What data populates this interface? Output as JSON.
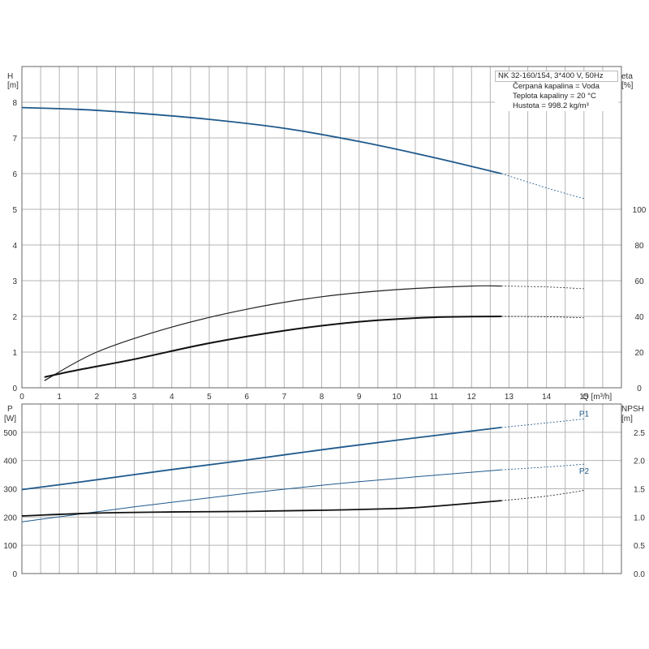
{
  "info": {
    "title": "NK 32-160/154, 3*400 V, 50Hz",
    "lines": [
      "Čerpaná kapalina = Voda",
      "Teplota kapaliny = 20 °C",
      "Hustota = 998.2 kg/m³"
    ]
  },
  "axes": {
    "h_label": "H",
    "h_unit": "[m]",
    "eta_label": "eta",
    "eta_unit": "[%]",
    "q_label": "Q [m³/h]",
    "p_label": "P",
    "p_unit": "[W]",
    "npsh_label": "NPSH",
    "npsh_unit": "[m]"
  },
  "chart_data": [
    {
      "type": "line",
      "x_ticks": [
        0,
        1,
        2,
        3,
        4,
        5,
        6,
        7,
        8,
        9,
        10,
        11,
        12,
        13,
        14,
        15
      ],
      "xlim": [
        0,
        16
      ],
      "y_left_ticks": [
        0,
        1,
        2,
        3,
        4,
        5,
        6,
        7,
        8
      ],
      "ylim_left": [
        0,
        9
      ],
      "y_right_ticks": [
        0,
        20,
        40,
        60,
        80,
        100
      ],
      "ylim_right": [
        0,
        180
      ],
      "series": [
        {
          "axis": "left",
          "color": "#1f5a8c",
          "width": 1.8,
          "solid": [
            [
              0,
              7.85
            ],
            [
              1.5,
              7.8
            ],
            [
              3,
              7.7
            ],
            [
              5,
              7.52
            ],
            [
              7,
              7.27
            ],
            [
              9,
              6.9
            ],
            [
              11,
              6.45
            ],
            [
              12.8,
              6.0
            ]
          ],
          "dashed": [
            [
              12.8,
              6.0
            ],
            [
              14,
              5.6
            ],
            [
              15,
              5.3
            ]
          ]
        },
        {
          "axis": "right",
          "color": "#222222",
          "width": 1.2,
          "solid": [
            [
              0.6,
              4
            ],
            [
              2,
              20
            ],
            [
              4,
              34
            ],
            [
              6,
              44
            ],
            [
              8,
              51
            ],
            [
              10,
              55
            ],
            [
              12,
              57
            ],
            [
              12.8,
              57
            ]
          ],
          "dashed": [
            [
              12.8,
              57
            ],
            [
              14,
              56.5
            ],
            [
              15,
              55.5
            ]
          ]
        },
        {
          "axis": "right",
          "color": "#111111",
          "width": 2.0,
          "solid": [
            [
              0.6,
              6
            ],
            [
              1.5,
              10
            ],
            [
              3,
              16
            ],
            [
              5,
              25
            ],
            [
              7,
              32
            ],
            [
              9,
              37
            ],
            [
              11,
              39.5
            ],
            [
              12.8,
              40
            ]
          ],
          "dashed": [
            [
              12.8,
              40
            ],
            [
              14,
              39.8
            ],
            [
              15,
              39.2
            ]
          ]
        }
      ]
    },
    {
      "type": "line",
      "x_ticks": [
        0,
        1,
        2,
        3,
        4,
        5,
        6,
        7,
        8,
        9,
        10,
        11,
        12,
        13,
        14,
        15
      ],
      "xlim": [
        0,
        16
      ],
      "y_left_ticks": [
        0,
        100,
        200,
        300,
        400,
        500
      ],
      "ylim_left": [
        0,
        600
      ],
      "y_right_ticks": [
        0.0,
        0.5,
        1.0,
        1.5,
        2.0,
        2.5
      ],
      "ylim_right": [
        0,
        3.0
      ],
      "series": [
        {
          "name": "P1",
          "axis": "left",
          "color": "#1f5a8c",
          "width": 1.8,
          "solid": [
            [
              0,
              297
            ],
            [
              1.5,
              323
            ],
            [
              4,
              368
            ],
            [
              6,
              402
            ],
            [
              8,
              438
            ],
            [
              10,
              472
            ],
            [
              12.8,
              517
            ]
          ],
          "dashed": [
            [
              12.8,
              517
            ],
            [
              14,
              533
            ],
            [
              15,
              547
            ]
          ]
        },
        {
          "name": "P2",
          "axis": "left",
          "color": "#1f5a8c",
          "width": 1.0,
          "solid": [
            [
              0,
              183
            ],
            [
              3,
              236
            ],
            [
              6,
              284
            ],
            [
              9,
              325
            ],
            [
              12.8,
              367
            ]
          ],
          "dashed": [
            [
              12.8,
              367
            ],
            [
              14,
              377
            ],
            [
              15,
              387
            ]
          ]
        },
        {
          "axis": "right",
          "color": "#111111",
          "width": 1.8,
          "solid": [
            [
              0,
              1.02
            ],
            [
              2,
              1.07
            ],
            [
              4,
              1.09
            ],
            [
              6,
              1.1
            ],
            [
              8,
              1.12
            ],
            [
              10,
              1.15
            ],
            [
              11,
              1.19
            ],
            [
              12.8,
              1.29
            ]
          ],
          "dashed": [
            [
              12.8,
              1.29
            ],
            [
              14,
              1.37
            ],
            [
              15,
              1.47
            ]
          ]
        }
      ]
    }
  ]
}
